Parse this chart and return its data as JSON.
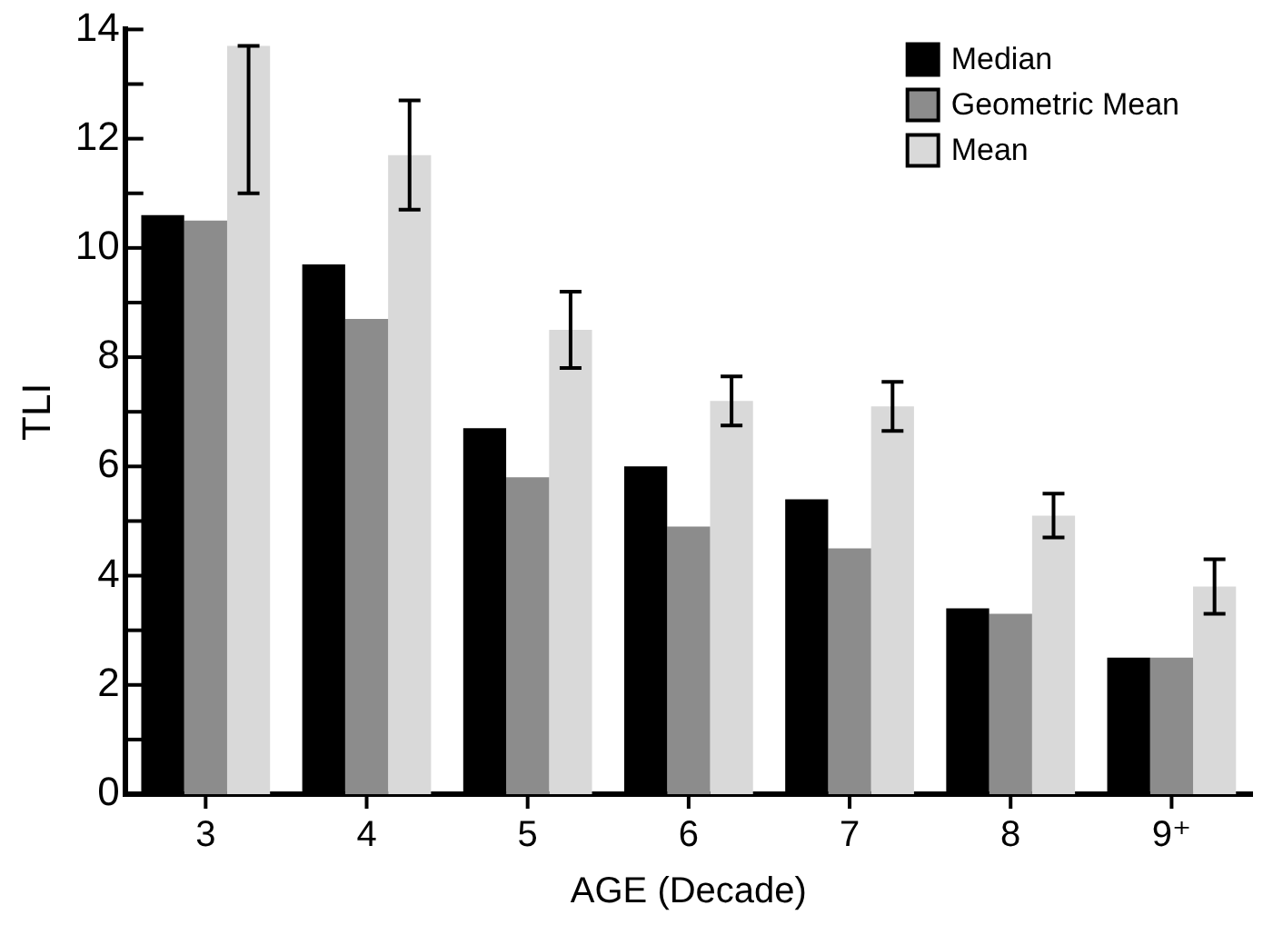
{
  "chart_data": {
    "type": "bar",
    "xlabel": "AGE (Decade)",
    "ylabel": "TLI",
    "categories": [
      "3",
      "4",
      "5",
      "6",
      "7",
      "8",
      "9⁺"
    ],
    "series": [
      {
        "name": "Median",
        "color": "#000000",
        "values": [
          10.6,
          9.7,
          6.7,
          6.0,
          5.4,
          3.4,
          2.5
        ]
      },
      {
        "name": "Geometric Mean",
        "color": "#8c8c8c",
        "values": [
          10.5,
          8.7,
          5.8,
          4.9,
          4.5,
          3.3,
          2.5
        ]
      },
      {
        "name": "Mean",
        "color": "#d9d9d9",
        "values": [
          13.7,
          11.7,
          8.5,
          7.2,
          7.1,
          5.1,
          3.8
        ],
        "errors": [
          [
            11.0,
            13.7
          ],
          1.0,
          0.7,
          0.45,
          0.45,
          0.4,
          0.5
        ]
      }
    ],
    "ylim": [
      0,
      14
    ],
    "yticks": [
      0,
      {
        "value": 1,
        "label": null
      },
      2,
      {
        "value": 3,
        "label": null
      },
      4,
      {
        "value": 5,
        "label": null
      },
      6,
      {
        "value": 7,
        "label": null
      },
      8,
      {
        "value": 9,
        "label": null
      },
      10,
      {
        "value": 11,
        "label": null
      },
      12,
      {
        "value": 13,
        "label": null
      },
      14
    ],
    "legend": "top right"
  }
}
